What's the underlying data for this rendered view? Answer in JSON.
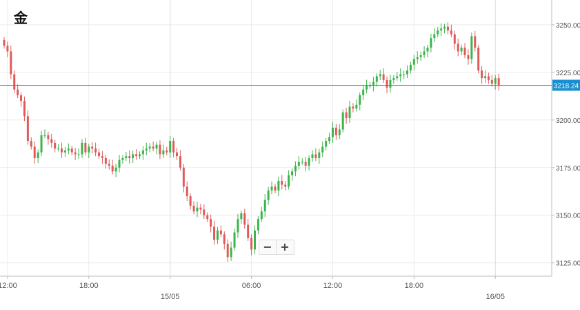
{
  "title": "金",
  "controls": {
    "zoom_out": "−",
    "zoom_in": "+"
  },
  "colors": {
    "up": "#3cb44b",
    "down": "#e05a5a",
    "price_line": "#1a8fd1",
    "grid": "#ececec",
    "axis": "#555555"
  },
  "chart_data": {
    "type": "candlestick",
    "title": "金",
    "current_price": 3218.24,
    "y_ticks": [
      3125.0,
      3150.0,
      3175.0,
      3200.0,
      3225.0,
      3250.0
    ],
    "y_tick_labels": [
      "3125.00",
      "3150.00",
      "3175.00",
      "3200.00",
      "3225.00",
      "3250.00"
    ],
    "ylim": [
      3118,
      3263
    ],
    "x_tick_labels": [
      "12:00",
      "18:00",
      "06:00",
      "12:00",
      "18:00"
    ],
    "x_day_labels": [
      "15/05",
      "16/05"
    ],
    "time_start": "14/05 11:45",
    "time_end": "16/05 03:30",
    "bar_interval_minutes": 15,
    "closes": [
      3239,
      3236,
      3224,
      3216,
      3213,
      3210,
      3202,
      3189,
      3186,
      3180,
      3183,
      3192,
      3192,
      3190,
      3188,
      3185,
      3185,
      3183,
      3184,
      3185,
      3183,
      3182,
      3182,
      3188,
      3183,
      3186,
      3185,
      3183,
      3181,
      3180,
      3177,
      3176,
      3173,
      3175,
      3179,
      3180,
      3181,
      3180,
      3182,
      3181,
      3182,
      3184,
      3185,
      3186,
      3185,
      3187,
      3182,
      3184,
      3183,
      3189,
      3183,
      3181,
      3175,
      3165,
      3160,
      3155,
      3152,
      3154,
      3153,
      3150,
      3148,
      3144,
      3137,
      3142,
      3140,
      3135,
      3128,
      3133,
      3141,
      3148,
      3151,
      3145,
      3138,
      3132,
      3142,
      3148,
      3152,
      3158,
      3163,
      3165,
      3163,
      3168,
      3166,
      3165,
      3171,
      3173,
      3176,
      3178,
      3178,
      3176,
      3180,
      3182,
      3180,
      3183,
      3186,
      3189,
      3191,
      3196,
      3192,
      3195,
      3204,
      3201,
      3207,
      3206,
      3208,
      3213,
      3216,
      3218,
      3218,
      3220,
      3223,
      3224,
      3221,
      3217,
      3221,
      3222,
      3223,
      3224,
      3224,
      3226,
      3229,
      3232,
      3233,
      3234,
      3236,
      3238,
      3243,
      3245,
      3247,
      3248,
      3249,
      3247,
      3245,
      3240,
      3236,
      3238,
      3234,
      3232,
      3244,
      3238,
      3226,
      3222,
      3223,
      3221,
      3219,
      3222,
      3218
    ]
  }
}
